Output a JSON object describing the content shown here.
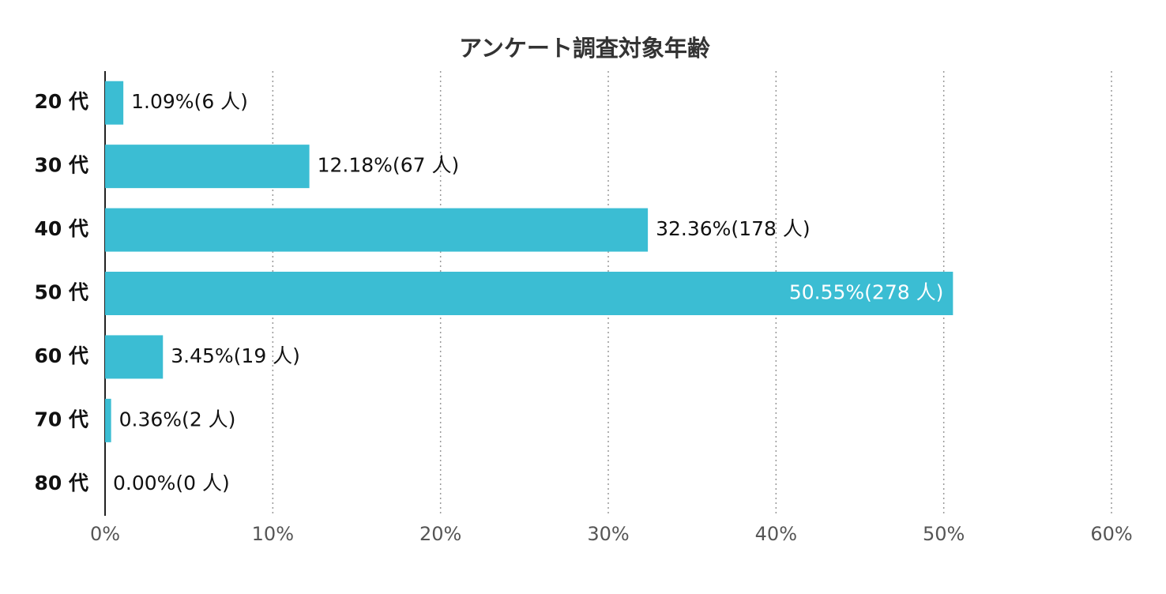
{
  "chart_data": {
    "type": "bar",
    "orientation": "horizontal",
    "title": "アンケート調査対象年齢",
    "categories": [
      "20 代",
      "30 代",
      "40 代",
      "50 代",
      "60 代",
      "70 代",
      "80 代"
    ],
    "values": [
      1.09,
      12.18,
      32.36,
      50.55,
      3.45,
      0.36,
      0.0
    ],
    "value_labels": [
      "1.09%(6 人)",
      "12.18%(67 人)",
      "32.36%(178 人)",
      "50.55%(278 人)",
      "3.45%(19 人)",
      "0.36%(2 人)",
      "0.00%(0 人)"
    ],
    "color": "#3bbdd3",
    "xlim": [
      0,
      60
    ],
    "xticks": [
      {
        "value": 0,
        "label": "0%"
      },
      {
        "value": 10,
        "label": "10%"
      },
      {
        "value": 20,
        "label": "20%"
      },
      {
        "value": 30,
        "label": "30%"
      },
      {
        "value": 40,
        "label": "40%"
      },
      {
        "value": 50,
        "label": "50%"
      },
      {
        "value": 60,
        "label": "60%"
      }
    ],
    "grid": true
  }
}
